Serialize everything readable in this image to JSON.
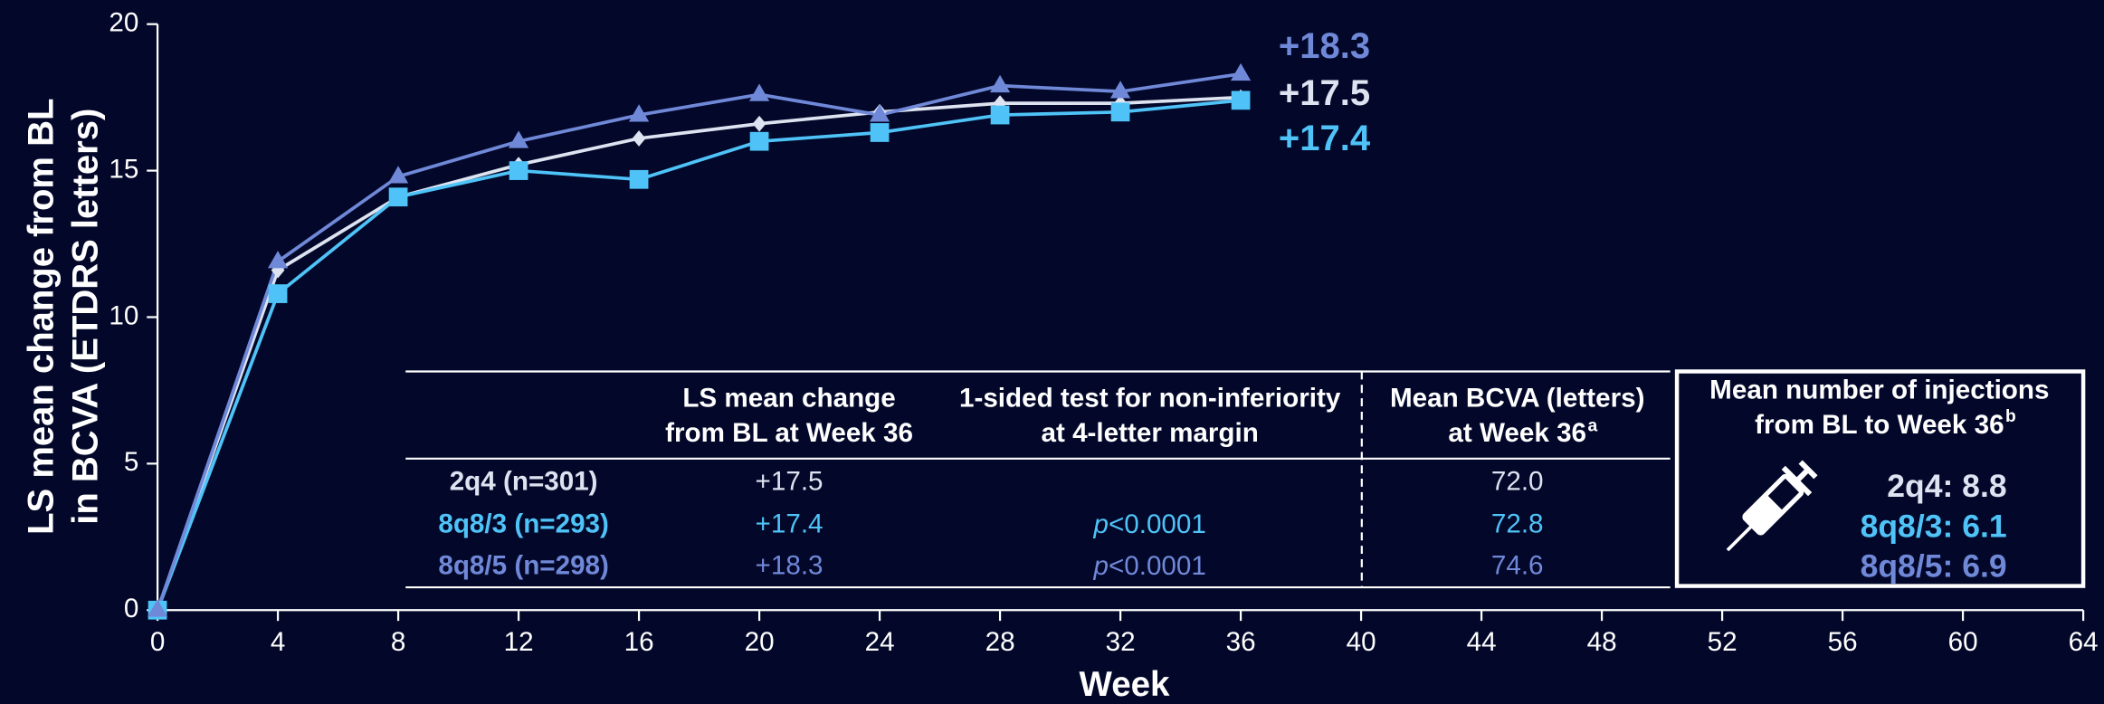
{
  "chart_data": {
    "type": "line",
    "x_label": "Week",
    "y_label": [
      "LS mean change from BL",
      "in BCVA (ETDRS letters)"
    ],
    "x": [
      0,
      4,
      8,
      12,
      16,
      20,
      24,
      28,
      32,
      36
    ],
    "xlim": [
      0,
      64
    ],
    "xticks": [
      0,
      4,
      8,
      12,
      16,
      20,
      24,
      28,
      32,
      36,
      40,
      44,
      48,
      52,
      56,
      60,
      64
    ],
    "ylim": [
      0,
      20
    ],
    "yticks": [
      0,
      5,
      10,
      15,
      20
    ],
    "grid": false,
    "series": [
      {
        "color": "#dde3f0",
        "marker": "diamond",
        "values": [
          0,
          11.6,
          14.1,
          15.2,
          16.1,
          16.6,
          17.0,
          17.3,
          17.3,
          17.5
        ],
        "end_label": "+17.5"
      },
      {
        "color": "#4fc3f7",
        "marker": "square",
        "values": [
          0,
          10.8,
          14.1,
          15.0,
          14.7,
          16.0,
          16.3,
          16.9,
          17.0,
          17.4
        ],
        "end_label": "+17.4"
      },
      {
        "color": "#7088d8",
        "marker": "triangle",
        "values": [
          0,
          11.9,
          14.8,
          16.0,
          16.9,
          17.6,
          16.9,
          17.9,
          17.7,
          18.3
        ],
        "end_label": "+18.3"
      }
    ]
  },
  "table": {
    "header": [
      [
        "LS mean change",
        "from BL at Week 36"
      ],
      [
        "1-sided test for non-inferiority",
        "at 4-letter margin"
      ],
      [
        "Mean BCVA (letters)",
        "at Week 36"
      ]
    ],
    "header_superscript": "a",
    "rows": [
      [
        "2q4 (n=301)",
        "+17.5",
        null,
        "72.0"
      ],
      [
        "8q8/3 (n=293)",
        "+17.4",
        "p<0.0001",
        "72.8"
      ],
      [
        "8q8/5 (n=298)",
        "+18.3",
        "p<0.0001",
        "74.6"
      ]
    ]
  },
  "injections": {
    "title": [
      "Mean number of injections",
      "from BL to Week 36"
    ],
    "superscript": "b",
    "rows": [
      "2q4: 8.8",
      "8q8/3: 6.1",
      "8q8/5: 6.9"
    ]
  }
}
